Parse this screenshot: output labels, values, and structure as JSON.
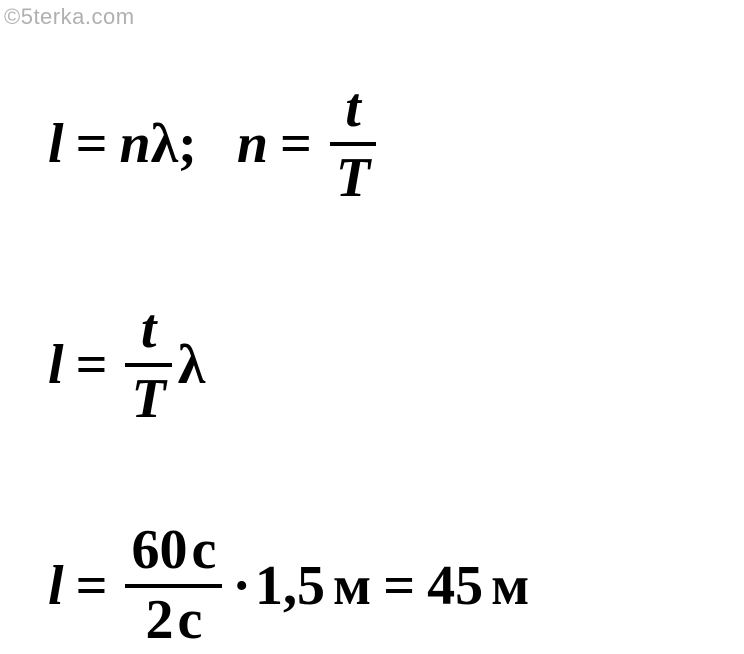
{
  "watermark": "©5terka.com",
  "equations": {
    "row1": {
      "part1": {
        "lhs": "l",
        "rhs_n": "n",
        "rhs_lambda": "λ"
      },
      "part2": {
        "lhs": "n",
        "frac_num": "t",
        "frac_den": "T"
      }
    },
    "row2": {
      "lhs": "l",
      "frac_num": "t",
      "frac_den": "T",
      "lambda": "λ"
    },
    "row3": {
      "lhs": "l",
      "frac_num_val": "60",
      "frac_num_unit": "с",
      "frac_den_val": "2",
      "frac_den_unit": "с",
      "middle_val": "1,5",
      "middle_unit": "м",
      "result_val": "45",
      "result_unit": "м"
    }
  },
  "symbols": {
    "equals": "=",
    "semicolon": ";",
    "dot": "·"
  },
  "style": {
    "font_color": "#000000",
    "watermark_color": "#b0b0b0",
    "background_color": "#ffffff",
    "font_size_main": 56,
    "font_size_watermark": 22,
    "font_family": "Times New Roman",
    "frac_line_width": 4
  }
}
